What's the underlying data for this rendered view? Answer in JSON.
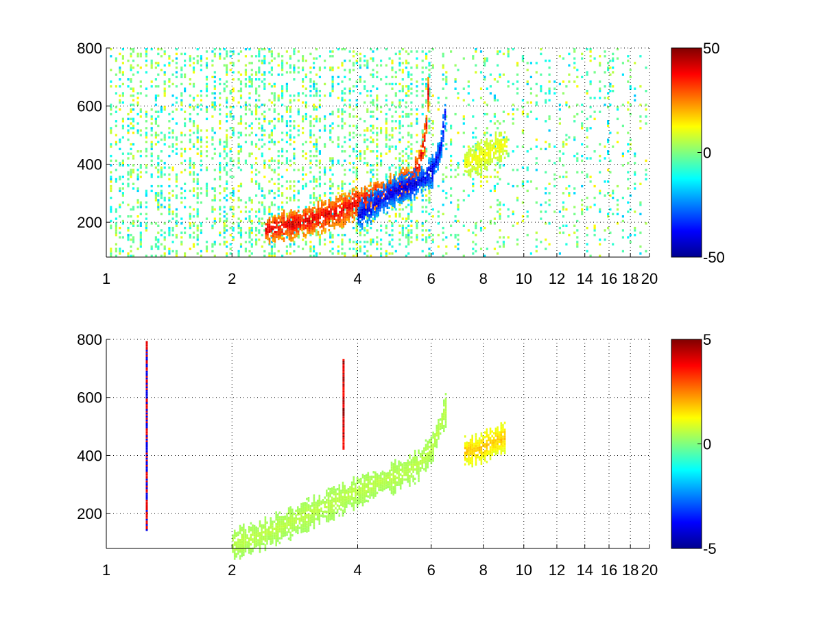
{
  "chart_data": [
    {
      "type": "heatmap",
      "title": "",
      "xlabel": "",
      "ylabel": "",
      "xscale": "log",
      "xlim": [
        1,
        20
      ],
      "ylim": [
        80,
        800
      ],
      "xticks": [
        1,
        2,
        4,
        6,
        8,
        10,
        12,
        14,
        16,
        18,
        20
      ],
      "xtick_labels": [
        "1",
        "2",
        "4",
        "6",
        "8",
        "10",
        "12",
        "14",
        "16",
        "18",
        "20"
      ],
      "yticks": [
        200,
        400,
        600,
        800
      ],
      "ytick_labels": [
        "200",
        "400",
        "600",
        "800"
      ],
      "grid": true,
      "colormap": "jet",
      "clim": [
        -50,
        50
      ],
      "colorbar_ticks": [
        50,
        0,
        -50
      ],
      "colorbar_tick_labels": [
        "50",
        "0",
        "-50"
      ],
      "features": [
        {
          "name": "positive ridge",
          "sign": "positive",
          "value": 40,
          "x": [
            2.4,
            3.0,
            3.6,
            4.2,
            4.8,
            5.3,
            5.6,
            5.8,
            5.9
          ],
          "y": [
            170,
            200,
            235,
            280,
            310,
            340,
            400,
            500,
            680
          ]
        },
        {
          "name": "negative ridge",
          "sign": "negative",
          "value": -40,
          "x": [
            4.0,
            4.5,
            5.0,
            5.5,
            6.0,
            6.3,
            6.5
          ],
          "y": [
            220,
            270,
            310,
            330,
            370,
            450,
            600
          ]
        },
        {
          "name": "isolated patch",
          "sign": "positive",
          "value": 12,
          "x": [
            7.2,
            7.8,
            8.3,
            8.8,
            9.1
          ],
          "y": [
            400,
            420,
            440,
            460,
            470
          ]
        }
      ]
    },
    {
      "type": "heatmap",
      "title": "",
      "xlabel": "",
      "ylabel": "",
      "xscale": "log",
      "xlim": [
        1,
        20
      ],
      "ylim": [
        80,
        800
      ],
      "xticks": [
        1,
        2,
        4,
        6,
        8,
        10,
        12,
        14,
        16,
        18,
        20
      ],
      "xtick_labels": [
        "1",
        "2",
        "4",
        "6",
        "8",
        "10",
        "12",
        "14",
        "16",
        "18",
        "20"
      ],
      "yticks": [
        200,
        400,
        600,
        800
      ],
      "ytick_labels": [
        "200",
        "400",
        "600",
        "800"
      ],
      "grid": true,
      "colormap": "jet",
      "clim": [
        -5,
        5
      ],
      "colorbar_ticks": [
        5,
        0,
        -5
      ],
      "colorbar_tick_labels": [
        "5",
        "0",
        "-5"
      ],
      "features": [
        {
          "name": "main band",
          "sign": "near-zero",
          "value": 0.6,
          "x": [
            2.0,
            2.6,
            3.2,
            3.8,
            4.4,
            5.0,
            5.5,
            6.0,
            6.5
          ],
          "y": [
            90,
            150,
            210,
            260,
            300,
            330,
            360,
            420,
            560
          ]
        },
        {
          "name": "isolated patch",
          "sign": "positive",
          "value": 1.8,
          "x": [
            7.2,
            7.8,
            8.3,
            8.8,
            9.0
          ],
          "y": [
            410,
            420,
            440,
            455,
            460
          ]
        },
        {
          "name": "vertical streak",
          "sign": "positive",
          "value": 5,
          "x": [
            3.7,
            3.7
          ],
          "y": [
            420,
            730
          ]
        },
        {
          "name": "vertical streak",
          "sign": "mixed",
          "value": 4,
          "x": [
            1.25,
            1.25
          ],
          "y": [
            140,
            790
          ]
        }
      ]
    }
  ]
}
